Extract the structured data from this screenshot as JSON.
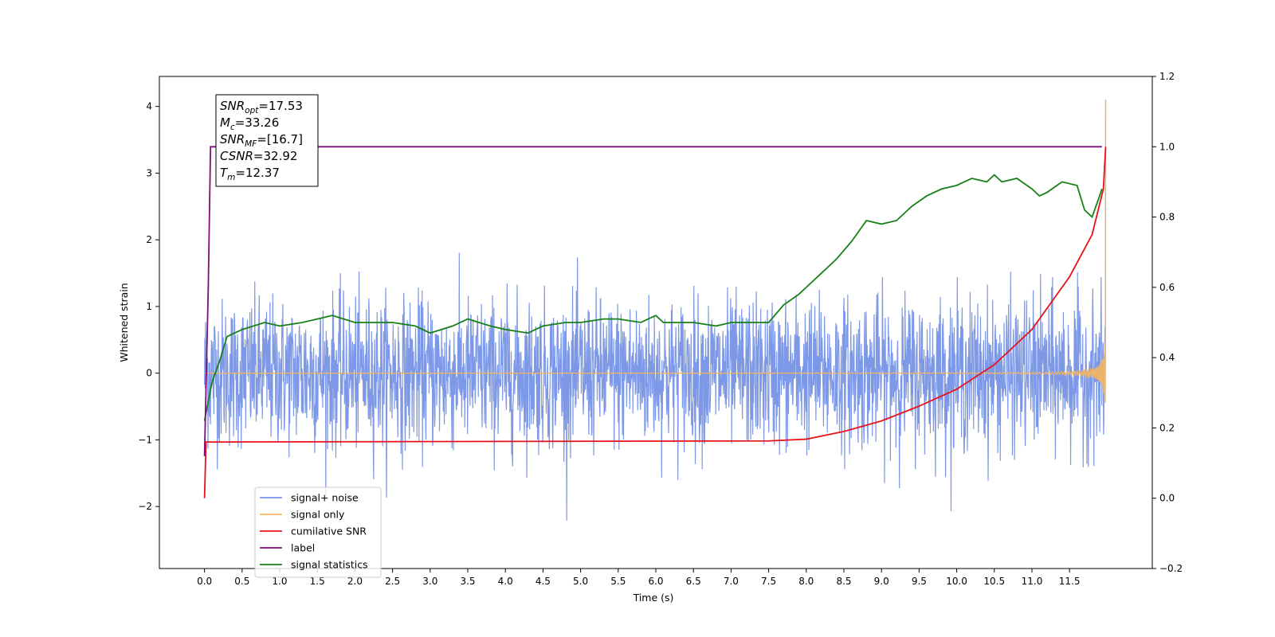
{
  "chart_data": {
    "type": "line",
    "xlabel": "Time (s)",
    "ylabel": "Whitened strain",
    "xlim": [
      -0.6,
      12.6
    ],
    "ylim": [
      -2.93,
      4.45
    ],
    "y2lim": [
      -0.2,
      1.2
    ],
    "x_ticks": [
      "0.0",
      "0.5",
      "1.0",
      "1.5",
      "2.0",
      "2.5",
      "3.0",
      "3.5",
      "4.0",
      "4.5",
      "5.0",
      "5.5",
      "6.0",
      "6.5",
      "7.0",
      "7.5",
      "8.0",
      "8.5",
      "9.0",
      "9.5",
      "10.0",
      "10.5",
      "11.0",
      "11.5"
    ],
    "y_ticks": [
      "−2",
      "−1",
      "0",
      "1",
      "2",
      "3",
      "4"
    ],
    "y2_ticks": [
      "−0.2",
      "0.0",
      "0.2",
      "0.4",
      "0.6",
      "0.8",
      "1.0",
      "1.2"
    ],
    "legend_position": "lower-left",
    "annotation": {
      "lines": [
        {
          "base": "SNR",
          "sub": "opt",
          "value": "=17.53"
        },
        {
          "base": "M",
          "sub": "c",
          "value": "=33.26"
        },
        {
          "base": "SNR",
          "sub": "MF",
          "value": "=[16.7]"
        },
        {
          "base": "CSNR",
          "sub": "",
          "value": "=32.92"
        },
        {
          "base": "T",
          "sub": "m",
          "value": "=12.37"
        }
      ]
    },
    "series": [
      {
        "name": "signal+ noise",
        "color": "#7592e6",
        "axis": "left",
        "noise_sigma": 0.55,
        "t_start": 0.0,
        "t_end": 11.98,
        "peak_value": 4.1
      },
      {
        "name": "signal only",
        "color": "#f5b55f",
        "axis": "left",
        "amplitude_at_end": 1.3,
        "peak_value": 4.1
      },
      {
        "name": "cumilative SNR",
        "color": "#e8131a",
        "axis": "right",
        "points": [
          [
            0.0,
            0.0
          ],
          [
            0.02,
            0.16
          ],
          [
            7.5,
            0.163
          ],
          [
            8.0,
            0.168
          ],
          [
            8.5,
            0.19
          ],
          [
            9.0,
            0.22
          ],
          [
            9.5,
            0.262
          ],
          [
            10.0,
            0.31
          ],
          [
            10.5,
            0.38
          ],
          [
            11.0,
            0.48
          ],
          [
            11.5,
            0.63
          ],
          [
            11.8,
            0.75
          ],
          [
            11.95,
            0.88
          ],
          [
            11.98,
            1.0
          ]
        ]
      },
      {
        "name": "label",
        "color": "#7b0f7b",
        "axis": "right",
        "points": [
          [
            0.0,
            0.12
          ],
          [
            0.05,
            0.6
          ],
          [
            0.08,
            1.0
          ],
          [
            11.93,
            1.0
          ]
        ]
      },
      {
        "name": "signal statistics",
        "color": "#178017",
        "axis": "right",
        "points": [
          [
            0.0,
            0.22
          ],
          [
            0.1,
            0.33
          ],
          [
            0.2,
            0.39
          ],
          [
            0.3,
            0.46
          ],
          [
            0.5,
            0.48
          ],
          [
            0.8,
            0.5
          ],
          [
            1.0,
            0.49
          ],
          [
            1.3,
            0.5
          ],
          [
            1.5,
            0.51
          ],
          [
            1.7,
            0.52
          ],
          [
            2.0,
            0.5
          ],
          [
            2.3,
            0.5
          ],
          [
            2.5,
            0.5
          ],
          [
            2.8,
            0.49
          ],
          [
            3.0,
            0.47
          ],
          [
            3.3,
            0.49
          ],
          [
            3.5,
            0.51
          ],
          [
            3.8,
            0.49
          ],
          [
            4.0,
            0.48
          ],
          [
            4.3,
            0.47
          ],
          [
            4.5,
            0.49
          ],
          [
            4.8,
            0.5
          ],
          [
            5.0,
            0.5
          ],
          [
            5.3,
            0.51
          ],
          [
            5.5,
            0.51
          ],
          [
            5.8,
            0.5
          ],
          [
            6.0,
            0.52
          ],
          [
            6.1,
            0.5
          ],
          [
            6.3,
            0.5
          ],
          [
            6.5,
            0.5
          ],
          [
            6.8,
            0.49
          ],
          [
            7.0,
            0.5
          ],
          [
            7.3,
            0.5
          ],
          [
            7.5,
            0.5
          ],
          [
            7.7,
            0.55
          ],
          [
            7.9,
            0.58
          ],
          [
            8.0,
            0.6
          ],
          [
            8.2,
            0.64
          ],
          [
            8.4,
            0.68
          ],
          [
            8.6,
            0.73
          ],
          [
            8.8,
            0.79
          ],
          [
            9.0,
            0.78
          ],
          [
            9.2,
            0.79
          ],
          [
            9.4,
            0.83
          ],
          [
            9.6,
            0.86
          ],
          [
            9.8,
            0.88
          ],
          [
            10.0,
            0.89
          ],
          [
            10.2,
            0.91
          ],
          [
            10.4,
            0.9
          ],
          [
            10.5,
            0.92
          ],
          [
            10.6,
            0.9
          ],
          [
            10.8,
            0.91
          ],
          [
            11.0,
            0.88
          ],
          [
            11.1,
            0.86
          ],
          [
            11.2,
            0.87
          ],
          [
            11.4,
            0.9
          ],
          [
            11.6,
            0.89
          ],
          [
            11.7,
            0.82
          ],
          [
            11.8,
            0.8
          ],
          [
            11.9,
            0.86
          ],
          [
            11.93,
            0.88
          ]
        ]
      }
    ]
  }
}
